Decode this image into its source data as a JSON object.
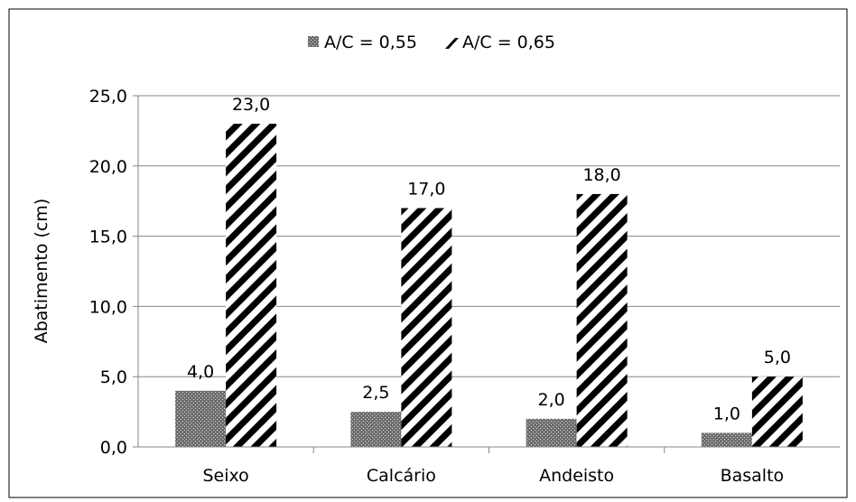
{
  "chart_data": {
    "type": "bar",
    "title": "",
    "xlabel": "",
    "ylabel": "Abatimento (cm)",
    "ylim": [
      0,
      25
    ],
    "yticks": [
      "0,0",
      "5,0",
      "10,0",
      "15,0",
      "20,0",
      "25,0"
    ],
    "grid": true,
    "legend_position": "top-center",
    "categories": [
      "Seixo",
      "Calcário",
      "Andeisto",
      "Basalto"
    ],
    "series": [
      {
        "name": "A/C = 0,55",
        "values": [
          4.0,
          2.5,
          2.0,
          1.0
        ],
        "labels": [
          "4,0",
          "2,5",
          "2,0",
          "1,0"
        ],
        "pattern": "dotted-crosshatch",
        "color": "#7f7f7f"
      },
      {
        "name": "A/C = 0,65",
        "values": [
          23.0,
          17.0,
          18.0,
          5.0
        ],
        "labels": [
          "23,0",
          "17,0",
          "18,0",
          "5,0"
        ],
        "pattern": "diagonal-stripes",
        "color": "#000000"
      }
    ]
  }
}
